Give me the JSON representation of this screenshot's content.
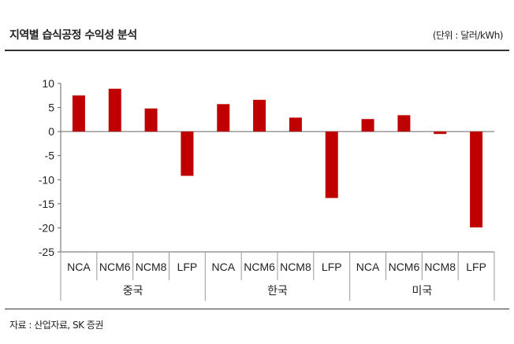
{
  "header": {
    "title": "지역별 습식공정 수익성 분석",
    "unit": "(단위 : 달러/kWh)"
  },
  "footer": {
    "source": "자료 : 산업자료, SK 증권"
  },
  "colors": {
    "bar": "#c00000",
    "axis": "#666666",
    "grid_separator": "#999999"
  },
  "chart_data": {
    "type": "bar",
    "title": "",
    "xlabel": "",
    "ylabel": "",
    "ylim": [
      -25,
      10
    ],
    "yticks": [
      10,
      5,
      0,
      -5,
      -10,
      -15,
      -20,
      -25
    ],
    "groups": [
      {
        "name": "중국",
        "categories": [
          "NCA",
          "NCM6",
          "NCM8",
          "LFP"
        ],
        "values": [
          7.5,
          8.9,
          4.8,
          -9.2
        ]
      },
      {
        "name": "한국",
        "categories": [
          "NCA",
          "NCM6",
          "NCM8",
          "LFP"
        ],
        "values": [
          5.7,
          6.6,
          2.9,
          -13.8
        ]
      },
      {
        "name": "미국",
        "categories": [
          "NCA",
          "NCM6",
          "NCM8",
          "LFP"
        ],
        "values": [
          2.6,
          3.4,
          -0.5,
          -19.9
        ]
      }
    ]
  }
}
